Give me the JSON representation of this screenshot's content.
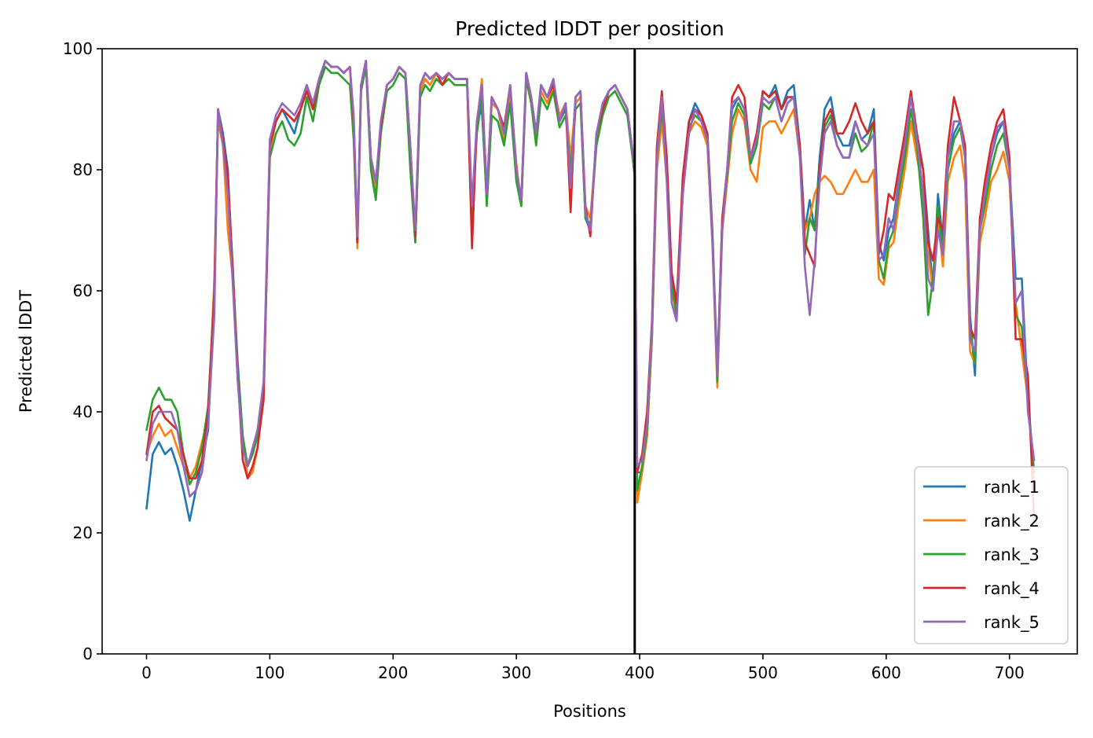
{
  "chart_data": {
    "type": "line",
    "title": "Predicted lDDT per position",
    "xlabel": "Positions",
    "ylabel": "Predicted lDDT",
    "xlim": [
      -36,
      755
    ],
    "ylim": [
      0,
      100
    ],
    "xticks": [
      0,
      100,
      200,
      300,
      400,
      500,
      600,
      700
    ],
    "yticks": [
      0,
      20,
      40,
      60,
      80,
      100
    ],
    "grid": false,
    "legend_position": "lower-right",
    "vertical_line": 396,
    "x": [
      0,
      5,
      10,
      15,
      20,
      25,
      30,
      35,
      40,
      45,
      50,
      55,
      58,
      62,
      66,
      70,
      74,
      78,
      82,
      86,
      90,
      95,
      100,
      105,
      110,
      115,
      120,
      125,
      130,
      135,
      140,
      145,
      150,
      155,
      160,
      165,
      168,
      171,
      174,
      178,
      182,
      186,
      190,
      195,
      200,
      205,
      210,
      214,
      218,
      222,
      226,
      230,
      235,
      240,
      245,
      250,
      255,
      260,
      264,
      268,
      272,
      276,
      280,
      285,
      290,
      295,
      300,
      304,
      308,
      312,
      316,
      320,
      325,
      330,
      335,
      340,
      344,
      348,
      352,
      356,
      360,
      365,
      370,
      375,
      380,
      385,
      390,
      396,
      398,
      402,
      406,
      410,
      414,
      418,
      422,
      426,
      430,
      435,
      440,
      445,
      450,
      455,
      459,
      463,
      467,
      471,
      475,
      480,
      485,
      490,
      495,
      500,
      505,
      510,
      515,
      520,
      525,
      530,
      534,
      538,
      542,
      546,
      550,
      555,
      560,
      565,
      570,
      575,
      580,
      585,
      590,
      594,
      598,
      602,
      606,
      610,
      615,
      620,
      625,
      630,
      634,
      638,
      642,
      646,
      650,
      655,
      660,
      664,
      668,
      672,
      676,
      680,
      685,
      690,
      695,
      700,
      705,
      710,
      715,
      720
    ],
    "series": [
      {
        "name": "rank_1",
        "color": "#1f77b4",
        "values": [
          24,
          33,
          35,
          33,
          34,
          31,
          27,
          22,
          27,
          32,
          37,
          60,
          90,
          86,
          80,
          62,
          48,
          36,
          31,
          33,
          36,
          44,
          84,
          88,
          90,
          88,
          86,
          90,
          94,
          90,
          95,
          98,
          97,
          97,
          96,
          97,
          88,
          69,
          94,
          98,
          82,
          76,
          86,
          94,
          95,
          97,
          96,
          82,
          68,
          93,
          95,
          94,
          96,
          95,
          96,
          95,
          95,
          95,
          72,
          88,
          90,
          75,
          92,
          90,
          86,
          93,
          80,
          74,
          96,
          92,
          86,
          94,
          92,
          95,
          88,
          90,
          80,
          92,
          93,
          72,
          70,
          86,
          90,
          93,
          94,
          92,
          90,
          80,
          30,
          30,
          36,
          52,
          82,
          92,
          80,
          62,
          57,
          78,
          88,
          91,
          89,
          86,
          70,
          47,
          72,
          80,
          90,
          92,
          90,
          82,
          86,
          93,
          92,
          94,
          90,
          93,
          94,
          84,
          70,
          75,
          70,
          82,
          90,
          92,
          86,
          84,
          84,
          88,
          85,
          86,
          90,
          68,
          65,
          70,
          72,
          78,
          84,
          90,
          84,
          80,
          70,
          60,
          76,
          68,
          82,
          86,
          88,
          84,
          56,
          46,
          72,
          76,
          82,
          86,
          88,
          80,
          62,
          62,
          42,
          30
        ]
      },
      {
        "name": "rank_2",
        "color": "#ff7f0e",
        "values": [
          33,
          36,
          38,
          36,
          37,
          34,
          31,
          29,
          31,
          35,
          39,
          62,
          88,
          84,
          70,
          62,
          45,
          36,
          29,
          30,
          34,
          43,
          83,
          88,
          90,
          89,
          88,
          90,
          94,
          91,
          95,
          98,
          97,
          97,
          96,
          97,
          87,
          67,
          93,
          98,
          81,
          77,
          87,
          94,
          95,
          97,
          96,
          83,
          69,
          93,
          95,
          94,
          96,
          95,
          96,
          95,
          95,
          95,
          74,
          87,
          95,
          76,
          91,
          90,
          85,
          93,
          81,
          74,
          95,
          91,
          85,
          93,
          91,
          94,
          89,
          91,
          82,
          91,
          92,
          74,
          72,
          85,
          90,
          93,
          94,
          92,
          90,
          79,
          25,
          30,
          36,
          52,
          80,
          88,
          78,
          60,
          56,
          76,
          86,
          88,
          87,
          84,
          68,
          44,
          70,
          78,
          86,
          90,
          88,
          80,
          78,
          87,
          88,
          88,
          86,
          88,
          90,
          82,
          70,
          72,
          76,
          78,
          79,
          78,
          76,
          76,
          78,
          80,
          78,
          78,
          80,
          62,
          61,
          67,
          68,
          74,
          80,
          88,
          82,
          76,
          66,
          60,
          72,
          64,
          78,
          82,
          84,
          78,
          50,
          48,
          68,
          72,
          78,
          80,
          83,
          78,
          58,
          50,
          42,
          28
        ]
      },
      {
        "name": "rank_3",
        "color": "#2ca02c",
        "values": [
          37,
          42,
          44,
          42,
          42,
          40,
          33,
          28,
          30,
          34,
          41,
          60,
          90,
          84,
          78,
          64,
          47,
          36,
          31,
          33,
          36,
          44,
          82,
          86,
          88,
          85,
          84,
          86,
          92,
          88,
          94,
          97,
          96,
          96,
          95,
          94,
          85,
          68,
          93,
          97,
          80,
          75,
          86,
          93,
          94,
          96,
          95,
          80,
          68,
          92,
          94,
          93,
          95,
          94,
          95,
          94,
          94,
          94,
          72,
          86,
          92,
          74,
          89,
          88,
          84,
          91,
          78,
          74,
          95,
          91,
          84,
          92,
          90,
          93,
          87,
          89,
          80,
          90,
          91,
          72,
          71,
          84,
          89,
          92,
          93,
          91,
          89,
          79,
          27,
          31,
          37,
          53,
          82,
          90,
          80,
          61,
          56,
          77,
          87,
          89,
          88,
          85,
          69,
          45,
          71,
          79,
          88,
          91,
          89,
          81,
          84,
          91,
          90,
          92,
          88,
          91,
          92,
          83,
          66,
          72,
          70,
          80,
          87,
          89,
          84,
          82,
          82,
          86,
          83,
          84,
          88,
          65,
          62,
          68,
          70,
          76,
          82,
          90,
          84,
          72,
          56,
          62,
          74,
          66,
          80,
          85,
          87,
          82,
          54,
          48,
          70,
          74,
          80,
          84,
          86,
          80,
          56,
          54,
          42,
          30
        ]
      },
      {
        "name": "rank_4",
        "color": "#d62728",
        "values": [
          33,
          40,
          41,
          39,
          38,
          37,
          33,
          29,
          29,
          32,
          40,
          60,
          90,
          85,
          79,
          63,
          46,
          32,
          29,
          31,
          34,
          42,
          84,
          88,
          90,
          89,
          88,
          90,
          93,
          90,
          95,
          98,
          97,
          97,
          96,
          97,
          88,
          68,
          94,
          98,
          82,
          78,
          87,
          94,
          95,
          97,
          96,
          84,
          69,
          94,
          96,
          95,
          96,
          94,
          96,
          95,
          95,
          95,
          67,
          88,
          94,
          76,
          92,
          90,
          87,
          94,
          80,
          75,
          96,
          92,
          86,
          94,
          92,
          94,
          88,
          91,
          73,
          92,
          93,
          74,
          69,
          86,
          90,
          93,
          94,
          92,
          90,
          80,
          30,
          33,
          40,
          55,
          84,
          93,
          82,
          63,
          58,
          79,
          88,
          90,
          89,
          86,
          69,
          46,
          72,
          80,
          92,
          94,
          92,
          82,
          86,
          93,
          92,
          93,
          90,
          92,
          92,
          84,
          68,
          66,
          64,
          80,
          88,
          90,
          86,
          86,
          88,
          91,
          88,
          86,
          88,
          66,
          70,
          76,
          75,
          80,
          86,
          93,
          86,
          80,
          68,
          65,
          72,
          70,
          84,
          92,
          88,
          84,
          54,
          52,
          72,
          78,
          84,
          88,
          90,
          82,
          52,
          52,
          46,
          22
        ]
      },
      {
        "name": "rank_5",
        "color": "#9467bd",
        "values": [
          32,
          38,
          40,
          40,
          40,
          37,
          31,
          26,
          27,
          30,
          38,
          56,
          90,
          84,
          76,
          61,
          45,
          34,
          31,
          34,
          37,
          45,
          85,
          89,
          91,
          90,
          89,
          91,
          94,
          91,
          95,
          98,
          97,
          97,
          96,
          97,
          89,
          69,
          94,
          98,
          82,
          78,
          88,
          94,
          95,
          97,
          96,
          84,
          70,
          94,
          96,
          95,
          96,
          95,
          96,
          95,
          95,
          95,
          74,
          88,
          94,
          76,
          92,
          90,
          86,
          94,
          80,
          75,
          96,
          92,
          86,
          94,
          92,
          95,
          88,
          91,
          77,
          92,
          93,
          73,
          70,
          86,
          91,
          93,
          94,
          92,
          90,
          80,
          31,
          32,
          38,
          54,
          82,
          92,
          78,
          58,
          55,
          76,
          86,
          90,
          88,
          85,
          68,
          46,
          70,
          80,
          91,
          92,
          90,
          82,
          85,
          92,
          91,
          92,
          88,
          91,
          92,
          82,
          64,
          56,
          65,
          78,
          86,
          88,
          84,
          82,
          82,
          88,
          85,
          84,
          86,
          65,
          66,
          72,
          70,
          78,
          84,
          92,
          85,
          76,
          62,
          60,
          70,
          66,
          82,
          88,
          88,
          82,
          52,
          50,
          70,
          76,
          82,
          87,
          88,
          80,
          58,
          60,
          40,
          32
        ]
      }
    ]
  }
}
